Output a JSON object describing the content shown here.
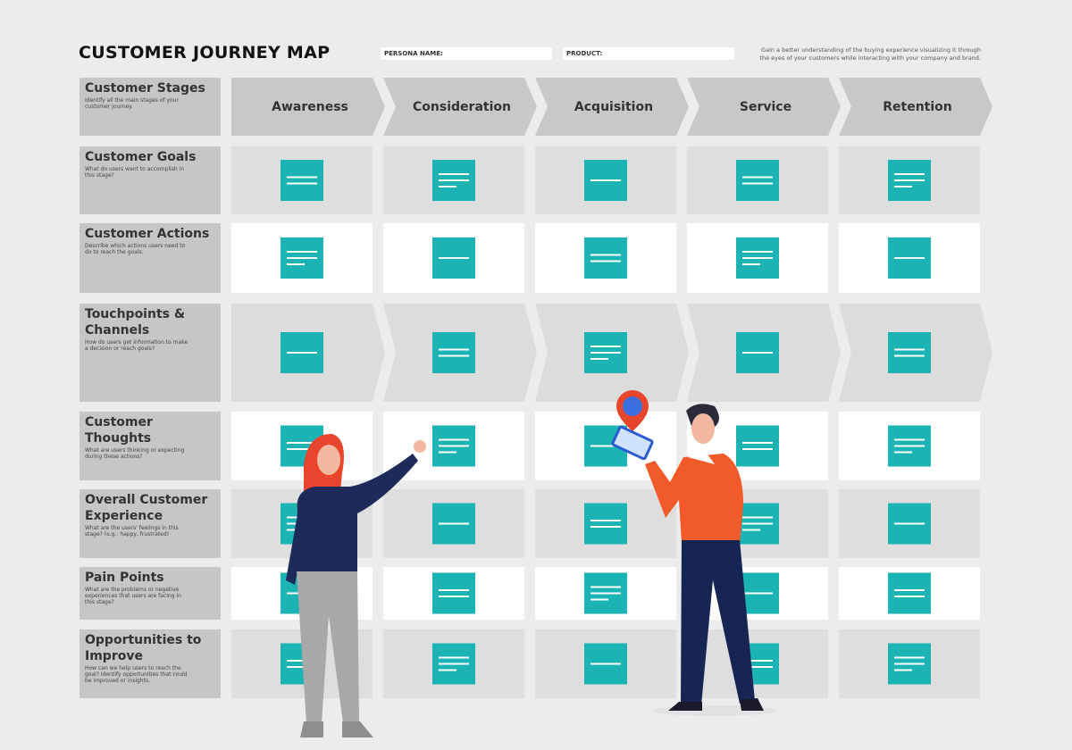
{
  "header": {
    "title": "CUSTOMER JOURNEY MAP",
    "persona_label": "PERSONA NAME:",
    "product_label": "PRODUCT:",
    "description": "Gain a better understanding of the buying experience visualizing it through the eyes of your customers while interacting with your company and brand."
  },
  "stages": [
    "Awareness",
    "Consideration",
    "Acquisition",
    "Service",
    "Retention"
  ],
  "rows": [
    {
      "title": "Customer Stages",
      "description": "Identify all the main stages of your customer journey."
    },
    {
      "title": "Customer Goals",
      "description": "What do users want to accomplish in this stage?"
    },
    {
      "title": "Customer Actions",
      "description": "Describe which actions users need to do to reach the goals."
    },
    {
      "title": "Touchpoints & Channels",
      "description": "How do users get information to make a decision or reach goals?"
    },
    {
      "title": "Customer Thoughts",
      "description": "What are users thinking or expecting during these actions?"
    },
    {
      "title": "Overall Customer Experience",
      "description": "What are the users' feelings in this stage? (e.g.: happy, frustrated)"
    },
    {
      "title": "Pain Points",
      "description": "What are the problems or negative experiences that users are facing in this stage?"
    },
    {
      "title": "Opportunities to Improve",
      "description": "How can we help users to reach the goal? Identify opportunities that could be improved or insights."
    }
  ]
}
